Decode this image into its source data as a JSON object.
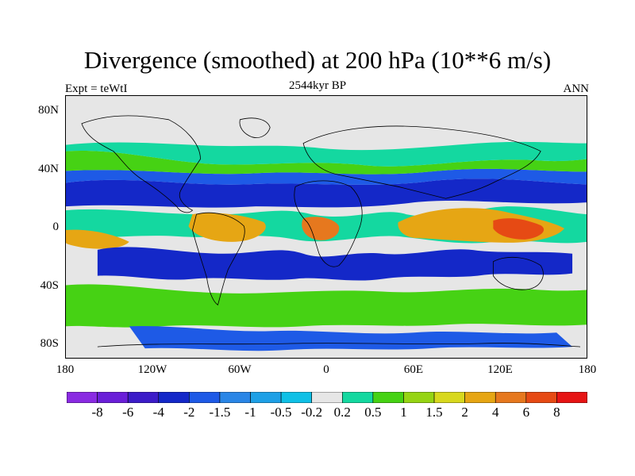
{
  "title": "Divergence (smoothed) at 200 hPa (10**6 m/s)",
  "subtitle_left": "Expt = teWtI",
  "subtitle_center": "2544kyr BP",
  "subtitle_right": "ANN",
  "y_ticks": [
    "80N",
    "40N",
    "0",
    "40S",
    "80S"
  ],
  "x_ticks": [
    "180",
    "120W",
    "60W",
    "0",
    "60E",
    "120E",
    "180"
  ],
  "colorbar": {
    "colors": [
      "#8a2be2",
      "#6a1fd8",
      "#3c1cc8",
      "#1428c8",
      "#1e5ae6",
      "#2a86e6",
      "#1ea0e6",
      "#10c0e6",
      "#e6e6e6",
      "#14d8a0",
      "#46d214",
      "#96d414",
      "#d8d81e",
      "#e6a614",
      "#e6781e",
      "#e64a14",
      "#e61414"
    ],
    "labels": [
      "-8",
      "-6",
      "-4",
      "-2",
      "-1.5",
      "-1",
      "-0.5",
      "-0.2",
      "0.2",
      "0.5",
      "1",
      "1.5",
      "2",
      "4",
      "6",
      "8"
    ]
  },
  "map_colors": {
    "background": "#e6e6e6",
    "strong_neg": "#1428c8",
    "neg": "#1e5ae6",
    "weak_neg": "#10c0e6",
    "weak_pos": "#14d8a0",
    "pos": "#46d214",
    "mid_pos": "#96d414",
    "high_pos": "#e6a614",
    "very_high_pos": "#e6781e",
    "max_pos": "#e64a14"
  }
}
